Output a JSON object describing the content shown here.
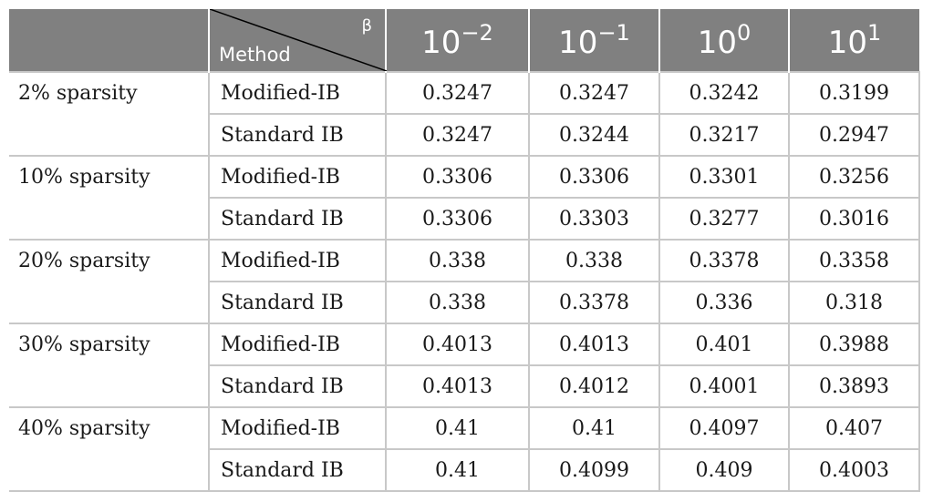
{
  "header": {
    "beta_label": "β",
    "method_label": "Method",
    "exponents": [
      {
        "base": "10",
        "exp": "−2"
      },
      {
        "base": "10",
        "exp": "−1"
      },
      {
        "base": "10",
        "exp": "0"
      },
      {
        "base": "10",
        "exp": "1"
      }
    ]
  },
  "groups": [
    {
      "label": "2% sparsity",
      "rows": [
        {
          "method": "Modified-IB",
          "values": [
            "0.3247",
            "0.3247",
            "0.3242",
            "0.3199"
          ]
        },
        {
          "method": "Standard IB",
          "values": [
            "0.3247",
            "0.3244",
            "0.3217",
            "0.2947"
          ]
        }
      ]
    },
    {
      "label": "10% sparsity",
      "rows": [
        {
          "method": "Modified-IB",
          "values": [
            "0.3306",
            "0.3306",
            "0.3301",
            "0.3256"
          ]
        },
        {
          "method": "Standard IB",
          "values": [
            "0.3306",
            "0.3303",
            "0.3277",
            "0.3016"
          ]
        }
      ]
    },
    {
      "label": "20% sparsity",
      "rows": [
        {
          "method": "Modified-IB",
          "values": [
            "0.338",
            "0.338",
            "0.3378",
            "0.3358"
          ]
        },
        {
          "method": "Standard IB",
          "values": [
            "0.338",
            "0.3378",
            "0.336",
            "0.318"
          ]
        }
      ]
    },
    {
      "label": "30% sparsity",
      "rows": [
        {
          "method": "Modified-IB",
          "values": [
            "0.4013",
            "0.4013",
            "0.401",
            "0.3988"
          ]
        },
        {
          "method": "Standard IB",
          "values": [
            "0.4013",
            "0.4012",
            "0.4001",
            "0.3893"
          ]
        }
      ]
    },
    {
      "label": "40% sparsity",
      "rows": [
        {
          "method": "Modified-IB",
          "values": [
            "0.41",
            "0.41",
            "0.4097",
            "0.407"
          ]
        },
        {
          "method": "Standard IB",
          "values": [
            "0.41",
            "0.4099",
            "0.409",
            "0.4003"
          ]
        }
      ]
    }
  ]
}
